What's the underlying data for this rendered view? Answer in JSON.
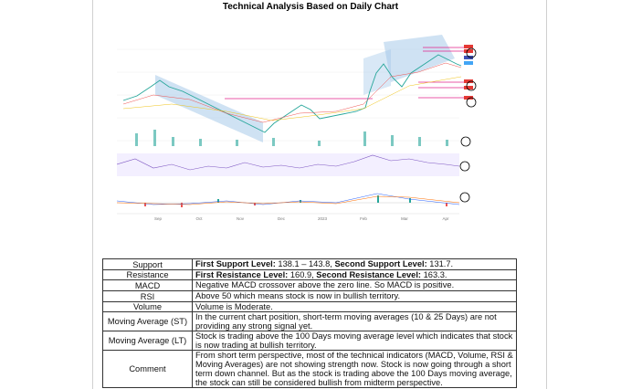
{
  "title": "Technical Analysis Based on Daily Chart",
  "chart_image": {
    "x_labels": [
      "Sep",
      "Oct",
      "Nov",
      "Dec",
      "2023",
      "Feb",
      "Mar",
      "Apr"
    ]
  },
  "table": {
    "rows": [
      {
        "label": "Support",
        "segments": [
          {
            "text": "First Support Level:",
            "bold": true
          },
          {
            "text": " 138.1 – 143.8, ",
            "bold": false
          },
          {
            "text": "Second Support Level:",
            "bold": true
          },
          {
            "text": " 131.7.",
            "bold": false
          }
        ]
      },
      {
        "label": "Resistance",
        "segments": [
          {
            "text": "First Resistance Level:",
            "bold": true
          },
          {
            "text": " 160.9, ",
            "bold": false
          },
          {
            "text": "Second Resistance Level:",
            "bold": true
          },
          {
            "text": " 163.3.",
            "bold": false
          }
        ]
      },
      {
        "label": "MACD",
        "segments": [
          {
            "text": "Negative MACD crossover above the zero line. So MACD is positive.",
            "bold": false
          }
        ]
      },
      {
        "label": "RSI",
        "segments": [
          {
            "text": "Above 50 which means stock is now in bullish territory.",
            "bold": false
          }
        ]
      },
      {
        "label": "Volume",
        "segments": [
          {
            "text": "Volume is Moderate.",
            "bold": false
          }
        ]
      },
      {
        "label": "Moving Average (ST)",
        "segments": [
          {
            "text": "In the current chart position, short-term moving averages (10 & 25 Days) are not providing any strong signal yet.",
            "bold": false
          }
        ]
      },
      {
        "label": "Moving Average (LT)",
        "segments": [
          {
            "text": "Stock is trading above the 100 Days moving average level which indicates that stock is now trading at bullish territory.",
            "bold": false
          }
        ]
      },
      {
        "label": "Comment",
        "segments": [
          {
            "text": "From short term perspective, most of the technical indicators (MACD, Volume, RSI & Moving Averages) are not showing strength now. Stock is now going through a short term down channel. But as the stock is trading above the 100 Days moving average, the stock can still be considered bullish from midterm perspective.",
            "bold": false
          }
        ]
      }
    ]
  }
}
